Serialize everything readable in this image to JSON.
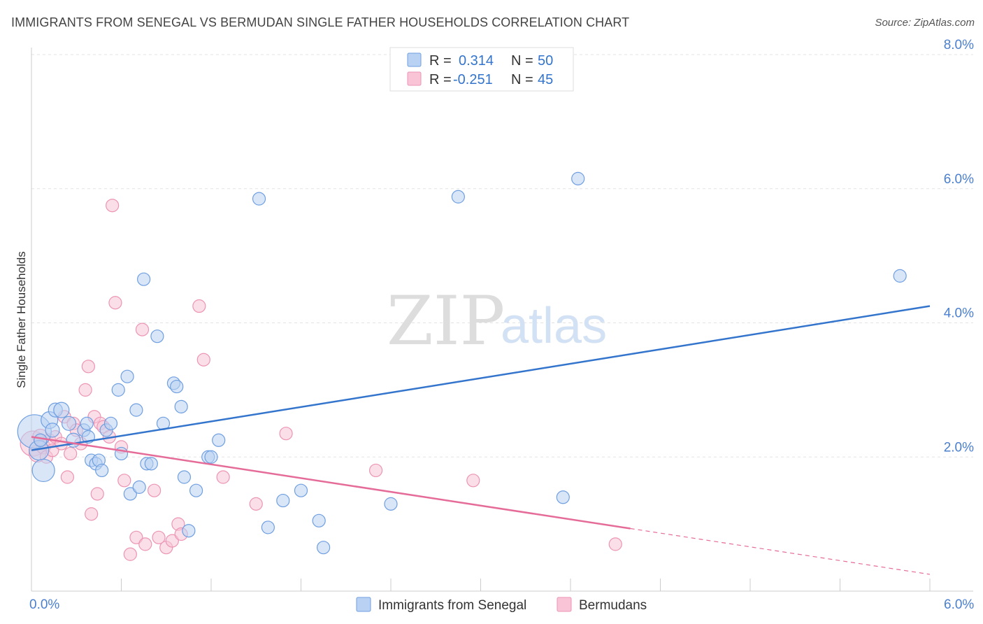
{
  "title": "IMMIGRANTS FROM SENEGAL VS BERMUDAN SINGLE FATHER HOUSEHOLDS CORRELATION CHART",
  "source": "Source: ZipAtlas.com",
  "watermark": {
    "zip": "ZIP",
    "atlas": "atlas"
  },
  "colors": {
    "blue": "#6f9fe0",
    "blue_fill": "#b9d1f3",
    "blue_line": "#3374cc",
    "pink": "#ec94b4",
    "pink_fill": "#f8c4d6",
    "pink_line": "#e56b98",
    "axis_text": "#4a7fd0"
  },
  "legend": {
    "r_label": "R =",
    "n_label": "N =",
    "rows": [
      {
        "series": "blue",
        "r": "0.314",
        "n": "50"
      },
      {
        "series": "pink",
        "r": "-0.251",
        "n": "45"
      }
    ]
  },
  "chart_data": {
    "type": "scatter",
    "title": "IMMIGRANTS FROM SENEGAL VS BERMUDAN SINGLE FATHER HOUSEHOLDS CORRELATION CHART",
    "xlabel": "",
    "ylabel": "Single Father Households",
    "xlim": [
      0,
      6
    ],
    "ylim": [
      0,
      8
    ],
    "x_tick_labels": [
      "0.0%",
      "6.0%"
    ],
    "y_ticks": [
      2,
      4,
      6,
      8
    ],
    "y_tick_labels": [
      "2.0%",
      "4.0%",
      "6.0%",
      "8.0%"
    ],
    "grid": true,
    "legend_position": "top-center",
    "series": [
      {
        "name": "Immigrants from Senegal",
        "color": "blue",
        "trend": {
          "x": [
            0,
            6
          ],
          "y": [
            2.1,
            4.25
          ],
          "dashed_from": null
        },
        "points": [
          [
            0.02,
            2.38,
            24
          ],
          [
            0.05,
            2.1,
            14
          ],
          [
            0.08,
            1.8,
            16
          ],
          [
            0.12,
            2.55,
            12
          ],
          [
            0.14,
            2.4,
            10
          ],
          [
            0.16,
            2.7,
            10
          ],
          [
            0.2,
            2.7,
            11
          ],
          [
            0.25,
            2.5,
            10
          ],
          [
            0.28,
            2.25,
            10
          ],
          [
            0.35,
            2.4,
            9
          ],
          [
            0.37,
            2.5,
            9
          ],
          [
            0.38,
            2.3,
            9
          ],
          [
            0.4,
            1.95,
            9
          ],
          [
            0.43,
            1.9,
            9
          ],
          [
            0.45,
            1.95,
            9
          ],
          [
            0.47,
            1.8,
            9
          ],
          [
            0.5,
            2.4,
            9
          ],
          [
            0.53,
            2.5,
            9
          ],
          [
            0.58,
            3.0,
            9
          ],
          [
            0.6,
            2.05,
            9
          ],
          [
            0.64,
            3.2,
            9
          ],
          [
            0.66,
            1.45,
            9
          ],
          [
            0.7,
            2.7,
            9
          ],
          [
            0.72,
            1.55,
            9
          ],
          [
            0.75,
            4.65,
            9
          ],
          [
            0.77,
            1.9,
            9
          ],
          [
            0.8,
            1.9,
            9
          ],
          [
            0.84,
            3.8,
            9
          ],
          [
            0.88,
            2.5,
            9
          ],
          [
            0.95,
            3.1,
            9
          ],
          [
            0.97,
            3.05,
            9
          ],
          [
            1.0,
            2.75,
            9
          ],
          [
            1.02,
            1.7,
            9
          ],
          [
            1.05,
            0.9,
            9
          ],
          [
            1.1,
            1.5,
            9
          ],
          [
            1.18,
            2.0,
            9
          ],
          [
            1.2,
            2.0,
            9
          ],
          [
            1.25,
            2.25,
            9
          ],
          [
            1.52,
            5.85,
            9
          ],
          [
            1.58,
            0.95,
            9
          ],
          [
            1.68,
            1.35,
            9
          ],
          [
            1.8,
            1.5,
            9
          ],
          [
            1.92,
            1.05,
            9
          ],
          [
            1.95,
            0.65,
            9
          ],
          [
            2.4,
            1.3,
            9
          ],
          [
            2.85,
            5.88,
            9
          ],
          [
            3.55,
            1.4,
            9
          ],
          [
            3.65,
            6.15,
            9
          ],
          [
            5.8,
            4.7,
            9
          ],
          [
            0.06,
            2.25,
            9
          ]
        ]
      },
      {
        "name": "Bermudans",
        "color": "pink",
        "trend": {
          "x": [
            0,
            6
          ],
          "y": [
            2.3,
            0.25
          ],
          "dashed_from": 4.0
        },
        "points": [
          [
            0.01,
            2.2,
            18
          ],
          [
            0.04,
            2.05,
            12
          ],
          [
            0.06,
            2.3,
            11
          ],
          [
            0.08,
            2.15,
            10
          ],
          [
            0.1,
            2.0,
            9
          ],
          [
            0.12,
            2.25,
            9
          ],
          [
            0.14,
            2.1,
            9
          ],
          [
            0.16,
            2.3,
            9
          ],
          [
            0.2,
            2.2,
            9
          ],
          [
            0.22,
            2.6,
            9
          ],
          [
            0.24,
            1.7,
            9
          ],
          [
            0.26,
            2.05,
            9
          ],
          [
            0.28,
            2.5,
            9
          ],
          [
            0.3,
            2.4,
            9
          ],
          [
            0.33,
            2.2,
            9
          ],
          [
            0.36,
            3.0,
            9
          ],
          [
            0.38,
            3.35,
            9
          ],
          [
            0.4,
            1.15,
            9
          ],
          [
            0.42,
            2.6,
            9
          ],
          [
            0.44,
            1.45,
            9
          ],
          [
            0.46,
            2.5,
            9
          ],
          [
            0.48,
            2.45,
            9
          ],
          [
            0.52,
            2.3,
            9
          ],
          [
            0.54,
            5.75,
            9
          ],
          [
            0.56,
            4.3,
            9
          ],
          [
            0.6,
            2.15,
            9
          ],
          [
            0.62,
            1.65,
            9
          ],
          [
            0.66,
            0.55,
            9
          ],
          [
            0.7,
            0.8,
            9
          ],
          [
            0.74,
            3.9,
            9
          ],
          [
            0.76,
            0.7,
            9
          ],
          [
            0.82,
            1.5,
            9
          ],
          [
            0.85,
            0.8,
            9
          ],
          [
            0.9,
            0.65,
            9
          ],
          [
            0.94,
            0.75,
            9
          ],
          [
            0.98,
            1.0,
            9
          ],
          [
            1.0,
            0.85,
            9
          ],
          [
            1.12,
            4.25,
            9
          ],
          [
            1.15,
            3.45,
            9
          ],
          [
            1.28,
            1.7,
            9
          ],
          [
            1.5,
            1.3,
            9
          ],
          [
            1.7,
            2.35,
            9
          ],
          [
            2.3,
            1.8,
            9
          ],
          [
            2.95,
            1.65,
            9
          ],
          [
            3.9,
            0.7,
            9
          ]
        ]
      }
    ]
  },
  "bottom_legend": [
    {
      "series": "blue",
      "label": "Immigrants from Senegal"
    },
    {
      "series": "pink",
      "label": "Bermudans"
    }
  ]
}
